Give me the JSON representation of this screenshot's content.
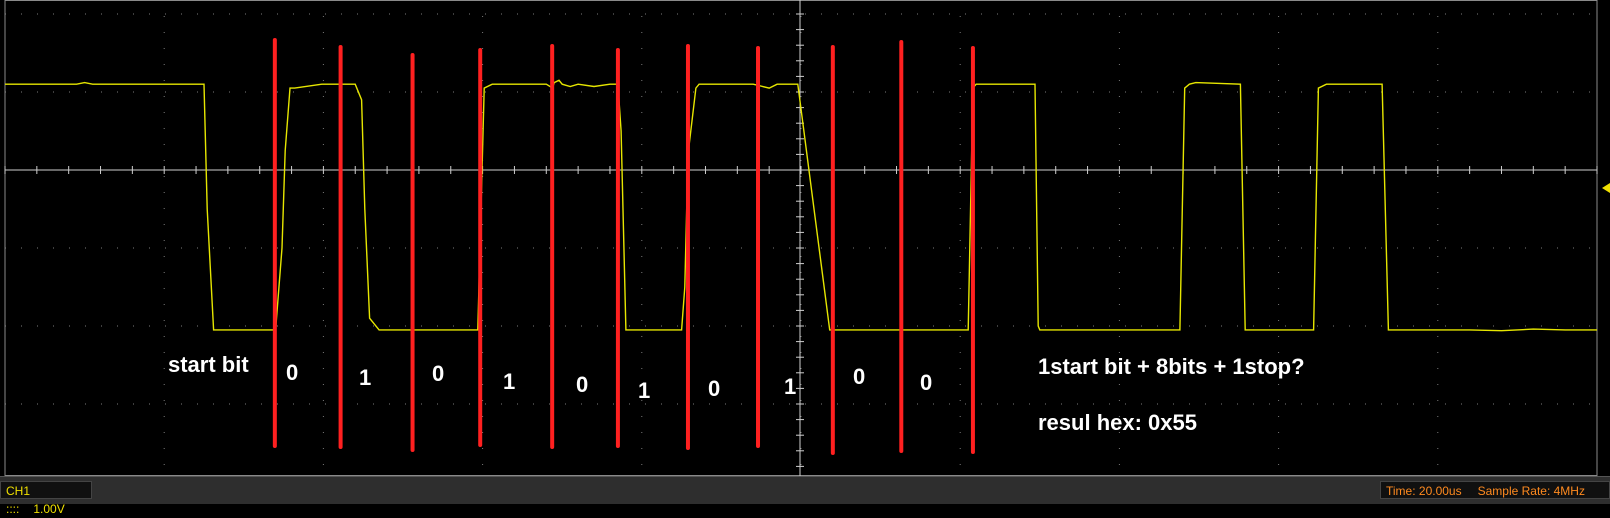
{
  "chart_data": {
    "type": "line",
    "title": "",
    "xlabel": "",
    "ylabel": "",
    "grid": true,
    "x_divisions": 10,
    "y_divisions": 6,
    "xlim": [
      0,
      10
    ],
    "ylim": [
      -3,
      3
    ],
    "series": [
      {
        "x": [
          0,
          0.05,
          0.1,
          0.2,
          0.3,
          0.45,
          0.5,
          0.55,
          0.7,
          0.9,
          1.1,
          1.25,
          1.27,
          1.31,
          1.5,
          1.7,
          1.74,
          1.76,
          1.79,
          1.82,
          1.99,
          2.11,
          2.2,
          2.24,
          2.26,
          2.29,
          2.35,
          2.5,
          2.7,
          2.9,
          2.97,
          3.01,
          3.06,
          3.4,
          3.44,
          3.45,
          3.48,
          3.5,
          3.55,
          3.6,
          3.7,
          3.8,
          3.85,
          3.87,
          3.9,
          3.95,
          4.1,
          4.25,
          4.27,
          4.29,
          4.34,
          4.36,
          4.5,
          4.7,
          4.8,
          4.85,
          4.98,
          5.18,
          5.21,
          5.24,
          5.5,
          5.8,
          6.05,
          6.08,
          6.1,
          6.13,
          6.47,
          6.49,
          6.5,
          6.54,
          6.6,
          6.65,
          6.7,
          6.8,
          7.38,
          7.41,
          7.44,
          7.48,
          7.76,
          7.79,
          7.85,
          8.22,
          8.25,
          8.3,
          8.65,
          8.69,
          9,
          9.2,
          9.4,
          9.6,
          9.8,
          10
        ],
        "values": [
          1.1,
          1.1,
          1.1,
          1.1,
          1.1,
          1.1,
          1.12,
          1.1,
          1.1,
          1.1,
          1.1,
          1.1,
          -0.5,
          -2.05,
          -2.05,
          -2.05,
          -1.0,
          0.25,
          1.05,
          1.05,
          1.1,
          1.1,
          1.1,
          0.9,
          -0.5,
          -1.9,
          -2.05,
          -2.05,
          -2.05,
          -2.05,
          -2.05,
          1.05,
          1.1,
          1.1,
          1.05,
          1.12,
          1.15,
          1.1,
          1.07,
          1.1,
          1.07,
          1.1,
          1.1,
          0.5,
          -2.05,
          -2.05,
          -2.05,
          -2.05,
          -1.5,
          0.2,
          1.05,
          1.1,
          1.1,
          1.1,
          1.05,
          1.1,
          1.1,
          -2.05,
          -2.05,
          -2.05,
          -2.05,
          -2.05,
          -2.05,
          1.05,
          1.1,
          1.1,
          1.1,
          -2.0,
          -2.05,
          -2.05,
          -2.05,
          -2.05,
          -2.05,
          -2.05,
          -2.05,
          1.05,
          1.1,
          1.12,
          1.1,
          -2.05,
          -2.05,
          -2.05,
          1.05,
          1.1,
          1.1,
          -2.05,
          -2.05,
          -2.05,
          -2.06,
          -2.04,
          -2.05,
          -2.05
        ]
      }
    ],
    "annotations": {
      "bit_labels": [
        "start bit",
        "0",
        "1",
        "0",
        "1",
        "0",
        "1",
        "0",
        "1",
        "0",
        "0"
      ],
      "note_line1": "1start bit + 8bits + 1stop?",
      "note_line2": "resul hex: 0x55"
    },
    "colors": {
      "trace": "#e6e600",
      "markers": "#ff2020",
      "grid": "#9a9a9a",
      "annotations": "#ffffff"
    }
  },
  "status": {
    "channel": "CH1 ::::",
    "volts_per_div": "1.00V",
    "time": "Time: 20.00us",
    "sample_rate": "Sample Rate: 4MHz"
  }
}
